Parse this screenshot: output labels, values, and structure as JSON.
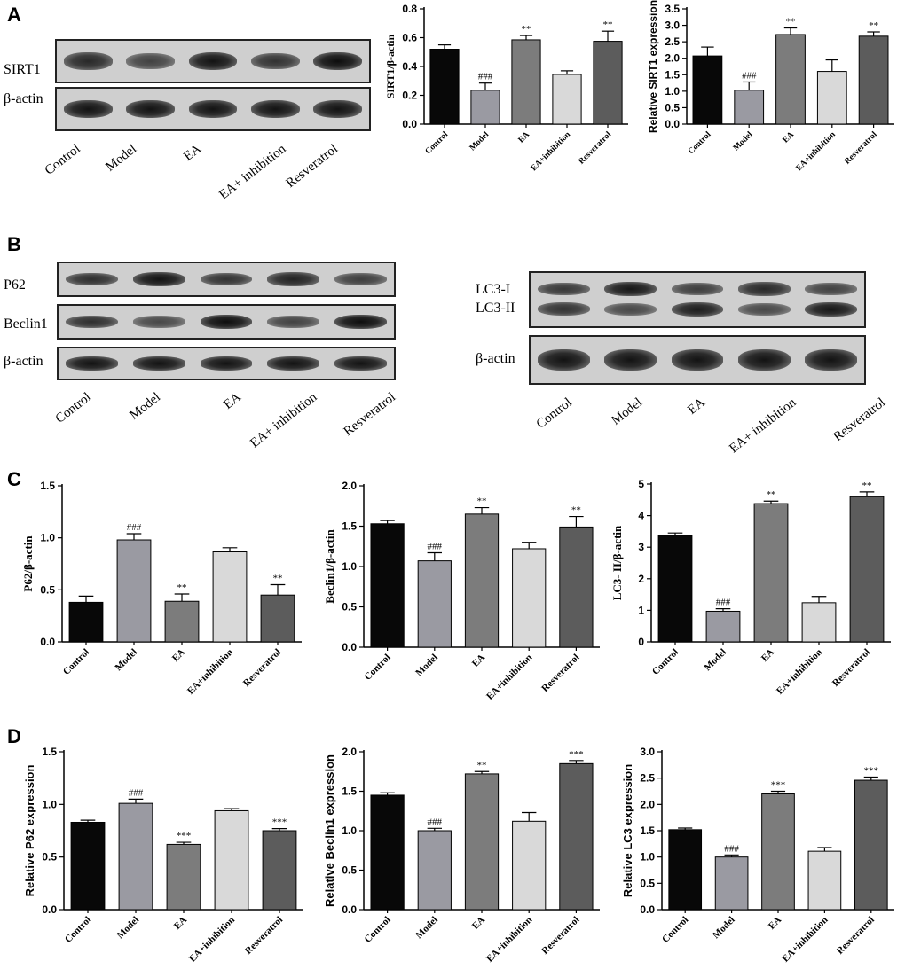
{
  "panels": {
    "A": "A",
    "B": "B",
    "C": "C",
    "D": "D"
  },
  "blots": {
    "A": {
      "rows": [
        "SIRT1",
        "β-actin"
      ],
      "lanes": [
        "Control",
        "Model",
        "EA",
        "EA+ inhibition",
        "Resveratrol"
      ],
      "intensity": [
        [
          0.75,
          0.5,
          0.95,
          0.65,
          1.0
        ],
        [
          0.95,
          0.95,
          0.95,
          0.95,
          0.95
        ]
      ]
    },
    "B1": {
      "rows": [
        "P62",
        "Beclin1",
        "β-actin"
      ],
      "lanes": [
        "Control",
        "Model",
        "EA",
        "EA+ inhibition",
        "Resveratrol"
      ],
      "intensity": [
        [
          0.7,
          0.95,
          0.65,
          0.8,
          0.55
        ],
        [
          0.7,
          0.45,
          1.0,
          0.5,
          1.0
        ],
        [
          0.95,
          0.95,
          0.95,
          0.95,
          0.95
        ]
      ]
    },
    "B2": {
      "rows": [
        "LC3-I",
        "LC3-II",
        "β-actin"
      ],
      "lanes": [
        "Control",
        "Model",
        "EA",
        "EA+ inhibition",
        "Resveratrol"
      ],
      "intensity": [
        [
          0.6,
          0.9,
          0.55,
          0.75,
          0.5
        ],
        [
          0.65,
          0.45,
          0.85,
          0.45,
          0.9
        ],
        [
          0.95,
          0.95,
          0.95,
          0.95,
          0.95
        ]
      ]
    }
  },
  "chart_data": [
    {
      "id": "A1",
      "type": "bar",
      "categories": [
        "Control",
        "Model",
        "EA",
        "EA+inhibition",
        "Resveratrol"
      ],
      "values": [
        0.52,
        0.235,
        0.585,
        0.345,
        0.575
      ],
      "errors": [
        0.03,
        0.05,
        0.03,
        0.025,
        0.07
      ],
      "sig": [
        "",
        "###",
        "**",
        "",
        "**"
      ],
      "ylabel": "SIRT1/β-actin",
      "ylim": [
        0,
        0.8
      ],
      "ticks": [
        "0.0",
        "0.2",
        "0.4",
        "0.6",
        "0.8"
      ],
      "label_font": "serif"
    },
    {
      "id": "A2",
      "type": "bar",
      "categories": [
        "Control",
        "Model",
        "EA",
        "EA+inhibition",
        "Resveratrol"
      ],
      "values": [
        2.07,
        1.03,
        2.72,
        1.6,
        2.67
      ],
      "errors": [
        0.27,
        0.25,
        0.2,
        0.35,
        0.13
      ],
      "sig": [
        "",
        "###",
        "**",
        "",
        "**"
      ],
      "ylabel": "Relative SIRT1 expression",
      "ylim": [
        0,
        3.5
      ],
      "ticks": [
        "0.0",
        "0.5",
        "1.0",
        "1.5",
        "2.0",
        "2.5",
        "3.0",
        "3.5"
      ],
      "label_font": "sans"
    },
    {
      "id": "C1",
      "type": "bar",
      "categories": [
        "Control",
        "Model",
        "EA",
        "EA+inhibition",
        "Resveratrol"
      ],
      "values": [
        0.38,
        0.98,
        0.39,
        0.865,
        0.45
      ],
      "errors": [
        0.06,
        0.06,
        0.07,
        0.04,
        0.1
      ],
      "sig": [
        "",
        "###",
        "**",
        "",
        "**"
      ],
      "ylabel": "P62/β-actin",
      "ylim": [
        0,
        1.5
      ],
      "ticks": [
        "0.0",
        "0.5",
        "1.0",
        "1.5"
      ],
      "label_font": "serif"
    },
    {
      "id": "C2",
      "type": "bar",
      "categories": [
        "Control",
        "Model",
        "EA",
        "EA+inhibition",
        "Resveratrol"
      ],
      "values": [
        1.53,
        1.07,
        1.65,
        1.22,
        1.49
      ],
      "errors": [
        0.04,
        0.1,
        0.08,
        0.08,
        0.13
      ],
      "sig": [
        "",
        "###",
        "**",
        "",
        "**"
      ],
      "ylabel": "Beclin1/β-actin",
      "ylim": [
        0,
        2.0
      ],
      "ticks": [
        "0.0",
        "0.5",
        "1.0",
        "1.5",
        "2.0"
      ],
      "label_font": "serif"
    },
    {
      "id": "C3",
      "type": "bar",
      "categories": [
        "Control",
        "Model",
        "EA",
        "EA+inhibition",
        "Resveratrol"
      ],
      "values": [
        3.37,
        0.97,
        4.38,
        1.24,
        4.6
      ],
      "errors": [
        0.08,
        0.08,
        0.08,
        0.2,
        0.15
      ],
      "sig": [
        "",
        "###",
        "**",
        "",
        "**"
      ],
      "ylabel": "LC3- II/β-actin",
      "ylim": [
        0,
        5
      ],
      "ticks": [
        "0",
        "1",
        "2",
        "3",
        "4",
        "5"
      ],
      "label_font": "serif"
    },
    {
      "id": "D1",
      "type": "bar",
      "categories": [
        "Control",
        "Model",
        "EA",
        "EA+inhibition",
        "Resveratrol"
      ],
      "values": [
        0.83,
        1.01,
        0.62,
        0.94,
        0.75
      ],
      "errors": [
        0.02,
        0.04,
        0.02,
        0.02,
        0.02
      ],
      "sig": [
        "",
        "###",
        "***",
        "",
        "***"
      ],
      "ylabel": "Relative P62 expression",
      "ylim": [
        0,
        1.5
      ],
      "ticks": [
        "0.0",
        "0.5",
        "1.0",
        "1.5"
      ],
      "label_font": "sans"
    },
    {
      "id": "D2",
      "type": "bar",
      "categories": [
        "Control",
        "Model",
        "EA",
        "EA+inhibition",
        "Resveratrol"
      ],
      "values": [
        1.45,
        1.0,
        1.72,
        1.12,
        1.85
      ],
      "errors": [
        0.03,
        0.03,
        0.03,
        0.11,
        0.04
      ],
      "sig": [
        "",
        "###",
        "**",
        "",
        "***"
      ],
      "ylabel": "Relative Beclin1 expression",
      "ylim": [
        0,
        2.0
      ],
      "ticks": [
        "0.0",
        "0.5",
        "1.0",
        "1.5",
        "2.0"
      ],
      "label_font": "sans"
    },
    {
      "id": "D3",
      "type": "bar",
      "categories": [
        "Control",
        "Model",
        "EA",
        "EA+inhibition",
        "Resveratrol"
      ],
      "values": [
        1.52,
        1.0,
        2.2,
        1.11,
        2.46
      ],
      "errors": [
        0.03,
        0.04,
        0.05,
        0.07,
        0.06
      ],
      "sig": [
        "",
        "###",
        "***",
        "",
        "***"
      ],
      "ylabel": "Relative LC3 expression",
      "ylim": [
        0,
        3.0
      ],
      "ticks": [
        "0.0",
        "0.5",
        "1.0",
        "1.5",
        "2.0",
        "2.5",
        "3.0"
      ],
      "label_font": "sans"
    }
  ],
  "colors": {
    "bars": [
      "#080808",
      "#9a9aa2",
      "#7c7c7c",
      "#d9d9d9",
      "#5c5c5c"
    ],
    "axis": "#000000"
  }
}
